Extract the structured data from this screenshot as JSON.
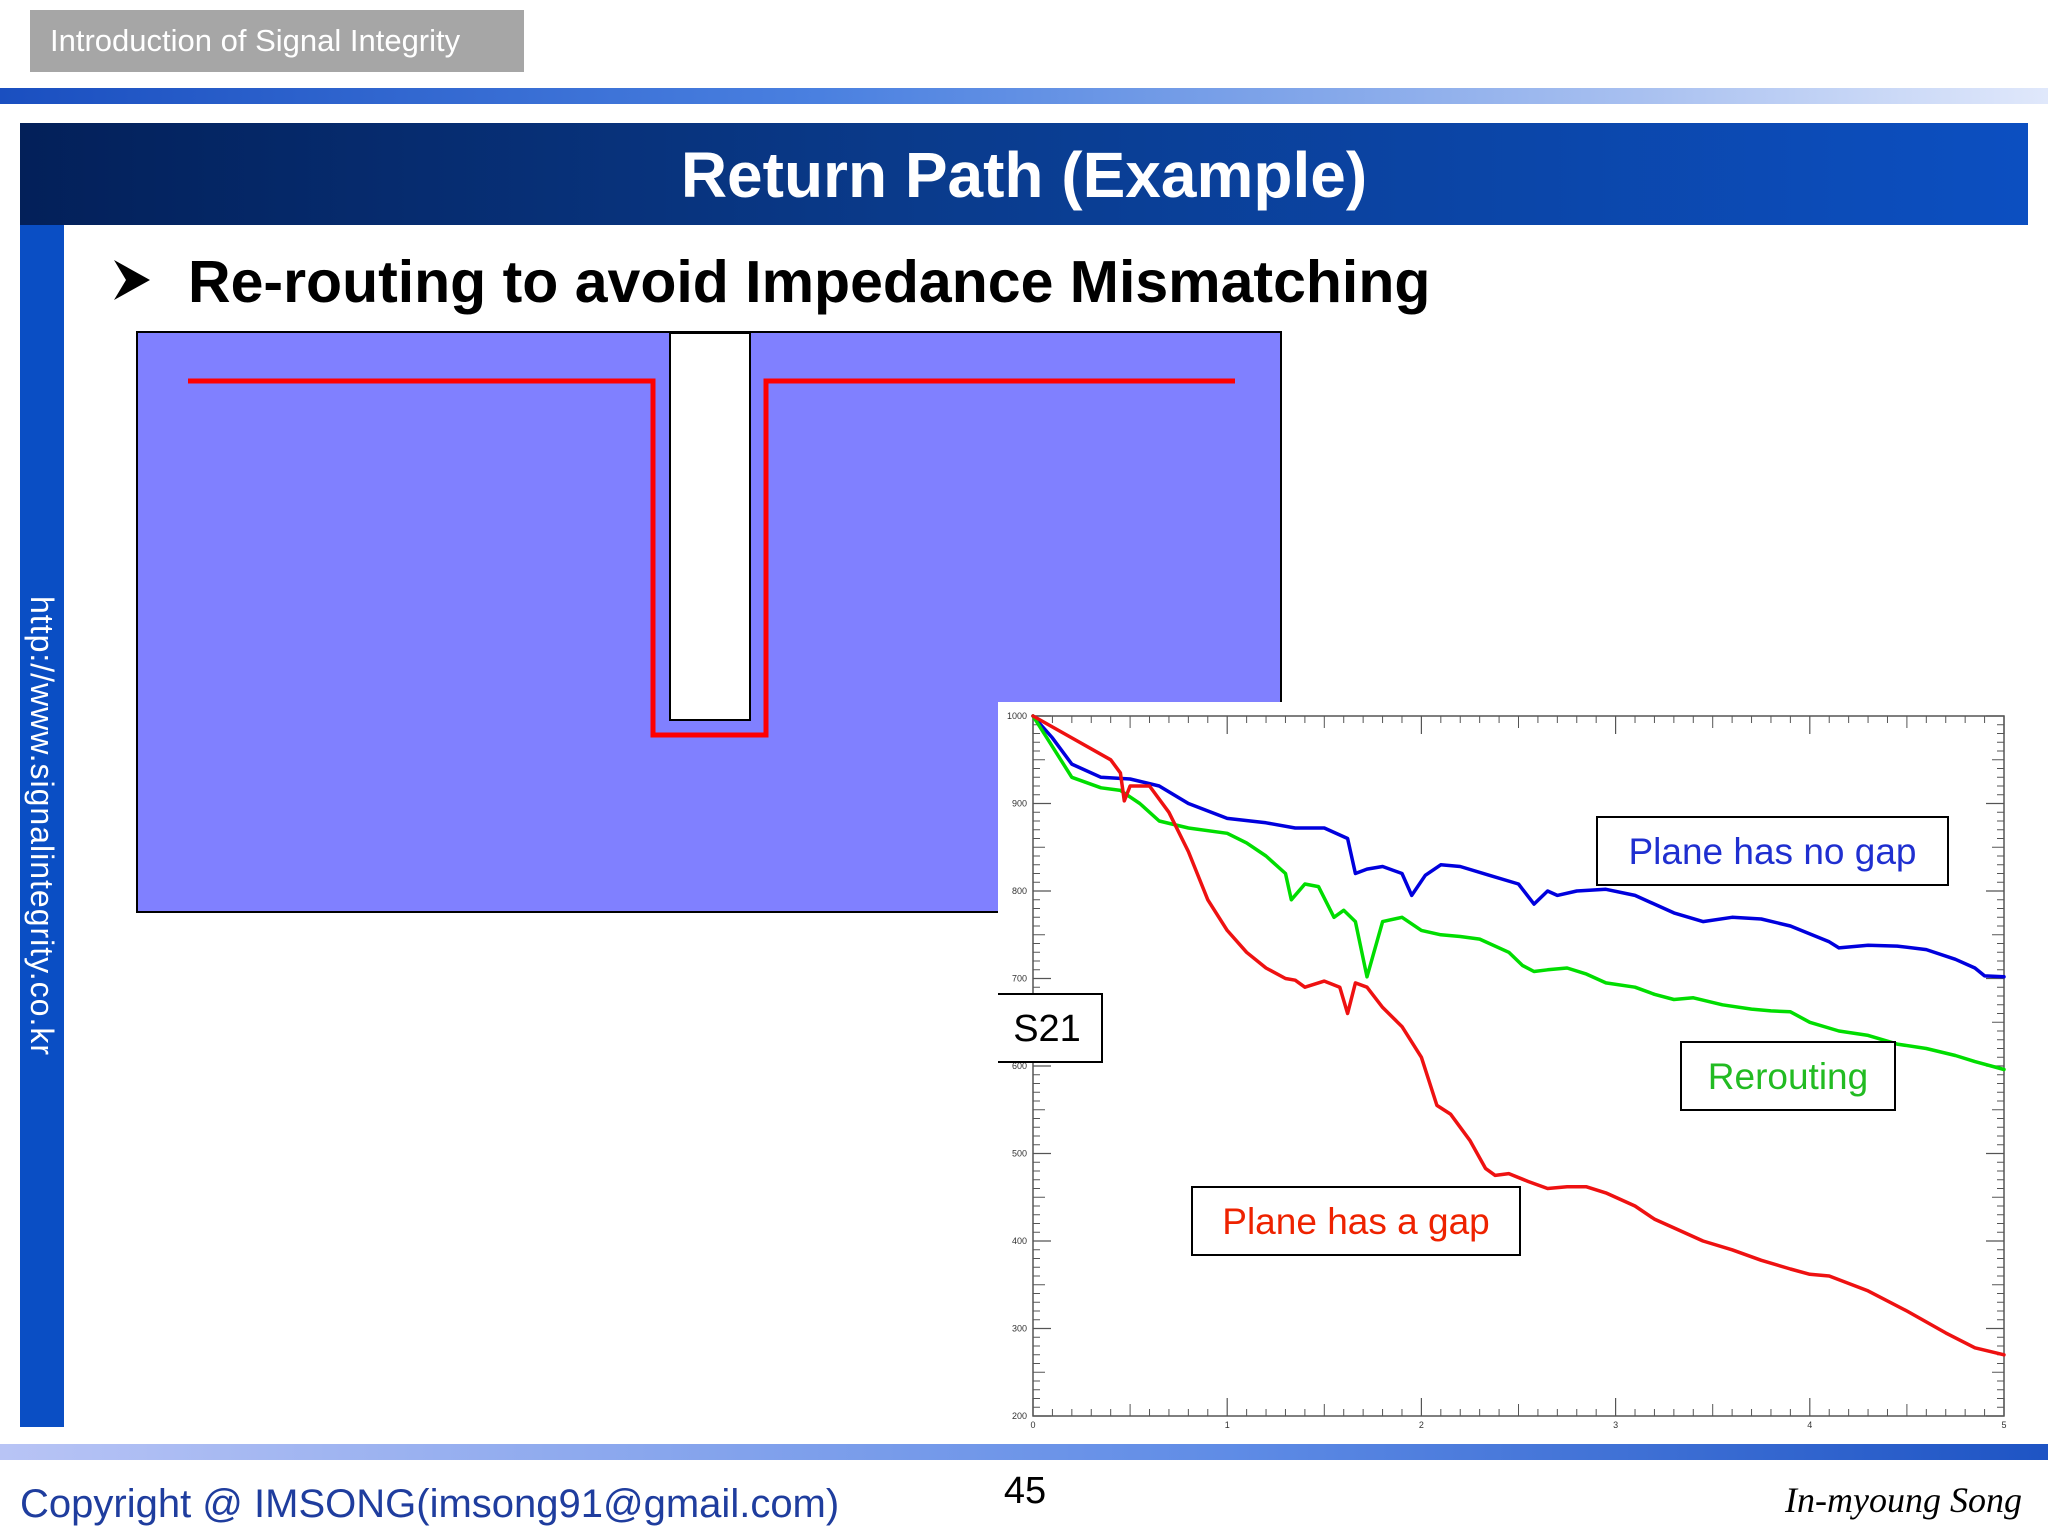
{
  "header": {
    "course_tag": "Introduction of Signal Integrity",
    "slide_title": "Return Path (Example)"
  },
  "sidebar": {
    "url": "http://www.signalintegrity.co.kr"
  },
  "bullet": {
    "text": "Re-routing to avoid Impedance Mismatching"
  },
  "colors": {
    "plane": "#8080ff",
    "trace": "#ff0000",
    "no_gap": "#0000dd",
    "rerouting": "#00dd00",
    "gap": "#ee1111"
  },
  "chart_data": {
    "type": "line",
    "xlim": [
      0,
      5
    ],
    "ylim": [
      200,
      1000
    ],
    "x_ticks": [
      "0",
      "1",
      "2",
      "3",
      "4",
      "5"
    ],
    "y_ticks": [
      "200",
      "300",
      "400",
      "500",
      "600",
      "700",
      "800",
      "900",
      "1000"
    ],
    "ylabel": "S21",
    "grid": false,
    "series": [
      {
        "name": "Plane has no gap",
        "color": "#0000dd",
        "points": [
          [
            0,
            1000
          ],
          [
            0.1,
            975
          ],
          [
            0.2,
            945
          ],
          [
            0.35,
            930
          ],
          [
            0.5,
            928
          ],
          [
            0.65,
            920
          ],
          [
            0.8,
            900
          ],
          [
            1.0,
            883
          ],
          [
            1.2,
            878
          ],
          [
            1.35,
            872
          ],
          [
            1.5,
            872
          ],
          [
            1.62,
            860
          ],
          [
            1.66,
            820
          ],
          [
            1.72,
            825
          ],
          [
            1.8,
            828
          ],
          [
            1.9,
            820
          ],
          [
            1.95,
            795
          ],
          [
            2.02,
            818
          ],
          [
            2.1,
            830
          ],
          [
            2.2,
            828
          ],
          [
            2.35,
            818
          ],
          [
            2.5,
            808
          ],
          [
            2.58,
            785
          ],
          [
            2.65,
            800
          ],
          [
            2.7,
            795
          ],
          [
            2.8,
            800
          ],
          [
            2.95,
            802
          ],
          [
            3.1,
            795
          ],
          [
            3.3,
            775
          ],
          [
            3.45,
            765
          ],
          [
            3.6,
            770
          ],
          [
            3.75,
            768
          ],
          [
            3.9,
            760
          ],
          [
            4.1,
            742
          ],
          [
            4.15,
            735
          ],
          [
            4.3,
            738
          ],
          [
            4.45,
            737
          ],
          [
            4.6,
            733
          ],
          [
            4.75,
            722
          ],
          [
            4.85,
            712
          ],
          [
            4.9,
            703
          ],
          [
            5.0,
            702
          ]
        ]
      },
      {
        "name": "Rerouting",
        "color": "#00dd00",
        "points": [
          [
            0,
            1000
          ],
          [
            0.1,
            965
          ],
          [
            0.2,
            930
          ],
          [
            0.35,
            918
          ],
          [
            0.45,
            915
          ],
          [
            0.55,
            900
          ],
          [
            0.65,
            880
          ],
          [
            0.8,
            872
          ],
          [
            1.0,
            866
          ],
          [
            1.1,
            855
          ],
          [
            1.2,
            840
          ],
          [
            1.3,
            820
          ],
          [
            1.33,
            790
          ],
          [
            1.4,
            808
          ],
          [
            1.47,
            805
          ],
          [
            1.55,
            770
          ],
          [
            1.6,
            778
          ],
          [
            1.66,
            765
          ],
          [
            1.72,
            702
          ],
          [
            1.8,
            765
          ],
          [
            1.9,
            770
          ],
          [
            2.0,
            755
          ],
          [
            2.1,
            750
          ],
          [
            2.2,
            748
          ],
          [
            2.3,
            745
          ],
          [
            2.45,
            730
          ],
          [
            2.52,
            715
          ],
          [
            2.58,
            708
          ],
          [
            2.65,
            710
          ],
          [
            2.75,
            712
          ],
          [
            2.85,
            705
          ],
          [
            2.95,
            695
          ],
          [
            3.1,
            690
          ],
          [
            3.2,
            682
          ],
          [
            3.3,
            676
          ],
          [
            3.4,
            678
          ],
          [
            3.55,
            670
          ],
          [
            3.7,
            665
          ],
          [
            3.8,
            663
          ],
          [
            3.9,
            662
          ],
          [
            4.0,
            650
          ],
          [
            4.15,
            640
          ],
          [
            4.3,
            635
          ],
          [
            4.45,
            625
          ],
          [
            4.6,
            620
          ],
          [
            4.75,
            612
          ],
          [
            4.85,
            605
          ],
          [
            5.0,
            596
          ]
        ]
      },
      {
        "name": "Plane has a gap",
        "color": "#ee1111",
        "points": [
          [
            0,
            1000
          ],
          [
            0.2,
            975
          ],
          [
            0.4,
            950
          ],
          [
            0.45,
            935
          ],
          [
            0.47,
            903
          ],
          [
            0.5,
            920
          ],
          [
            0.6,
            920
          ],
          [
            0.7,
            890
          ],
          [
            0.8,
            845
          ],
          [
            0.9,
            790
          ],
          [
            1.0,
            755
          ],
          [
            1.1,
            730
          ],
          [
            1.2,
            712
          ],
          [
            1.3,
            700
          ],
          [
            1.35,
            698
          ],
          [
            1.4,
            690
          ],
          [
            1.5,
            697
          ],
          [
            1.58,
            690
          ],
          [
            1.62,
            660
          ],
          [
            1.66,
            695
          ],
          [
            1.72,
            690
          ],
          [
            1.8,
            667
          ],
          [
            1.9,
            645
          ],
          [
            2.0,
            610
          ],
          [
            2.08,
            555
          ],
          [
            2.15,
            545
          ],
          [
            2.25,
            515
          ],
          [
            2.33,
            483
          ],
          [
            2.38,
            475
          ],
          [
            2.45,
            477
          ],
          [
            2.55,
            468
          ],
          [
            2.65,
            460
          ],
          [
            2.75,
            462
          ],
          [
            2.85,
            462
          ],
          [
            2.95,
            455
          ],
          [
            3.1,
            440
          ],
          [
            3.2,
            425
          ],
          [
            3.3,
            415
          ],
          [
            3.45,
            400
          ],
          [
            3.6,
            390
          ],
          [
            3.75,
            378
          ],
          [
            3.9,
            368
          ],
          [
            4.0,
            362
          ],
          [
            4.1,
            360
          ],
          [
            4.3,
            343
          ],
          [
            4.5,
            320
          ],
          [
            4.7,
            295
          ],
          [
            4.85,
            278
          ],
          [
            5.0,
            270
          ]
        ]
      }
    ],
    "annotations": [
      {
        "text": "Plane has no gap",
        "color": "#1f2fd0"
      },
      {
        "text": "Rerouting",
        "color": "#22bb22"
      },
      {
        "text": "Plane has a gap",
        "color": "#ee2200"
      }
    ]
  },
  "footer": {
    "copyright": "Copyright @ IMSONG(imsong91@gmail.com)",
    "page_number": "45",
    "author": "In-myoung Song"
  }
}
